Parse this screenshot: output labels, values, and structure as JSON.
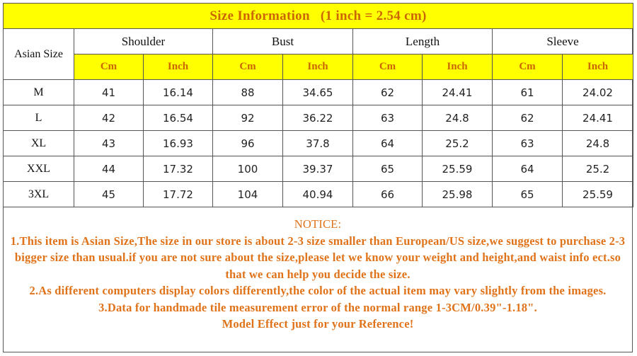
{
  "title": {
    "label": "Size  Information",
    "conversion": "(1 inch = 2.54 cm)"
  },
  "headers": {
    "asian_size": "Asian Size",
    "columns": [
      "Shoulder",
      "Bust",
      "Length",
      "Sleeve"
    ],
    "unit_cm": "Cm",
    "unit_inch": "Inch"
  },
  "rows": [
    {
      "size": "M",
      "values": [
        "41",
        "16.14",
        "88",
        "34.65",
        "62",
        "24.41",
        "61",
        "24.02"
      ]
    },
    {
      "size": "L",
      "values": [
        "42",
        "16.54",
        "92",
        "36.22",
        "63",
        "24.8",
        "62",
        "24.41"
      ]
    },
    {
      "size": "XL",
      "values": [
        "43",
        "16.93",
        "96",
        "37.8",
        "64",
        "25.2",
        "63",
        "24.8"
      ]
    },
    {
      "size": "XXL",
      "values": [
        "44",
        "17.32",
        "100",
        "39.37",
        "65",
        "25.59",
        "64",
        "25.2"
      ]
    },
    {
      "size": "3XL",
      "values": [
        "45",
        "17.72",
        "104",
        "40.94",
        "66",
        "25.98",
        "65",
        "25.59"
      ]
    }
  ],
  "notice": {
    "heading": "NOTICE:",
    "line1": "1.This item is Asian Size,The size in our store is about 2-3 size smaller than European/US size,we suggest to purchase 2-3 bigger size than usual.if you are not sure about the size,please let we know your weight and height,and waist info ect.so that we can help you decide the size.",
    "line2": "2.As different computers display colors differently,the color of the actual item may vary slightly from the images.",
    "line3": "3.Data for handmade tile measurement error of the normal range 1-3CM/0.39\"-1.18\".",
    "line4": "Model Effect just for your Reference!"
  },
  "colors": {
    "header_fill": "#ffff00",
    "accent_text": "#cc6600",
    "notice_text": "#e0731a"
  }
}
